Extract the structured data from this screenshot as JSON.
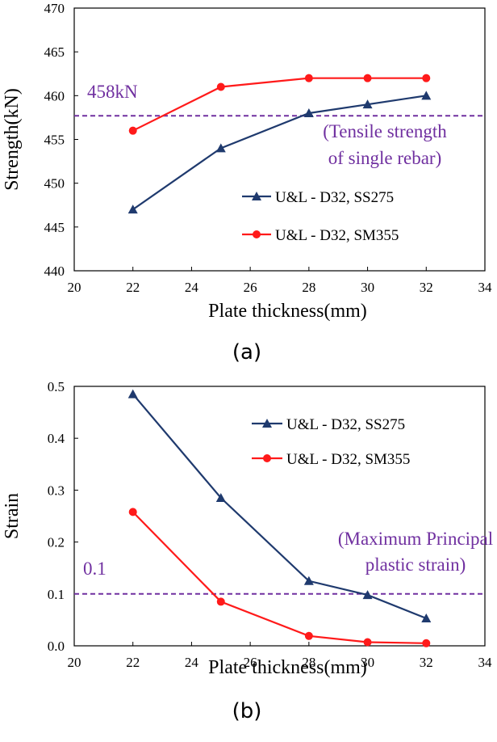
{
  "chart_data": [
    {
      "type": "line",
      "title": "",
      "caption": "(a)",
      "xlabel": "Plate thickness(mm)",
      "ylabel": "Strength(kN)",
      "xlim": [
        20,
        34
      ],
      "ylim": [
        440,
        470
      ],
      "xticks": [
        20,
        22,
        24,
        26,
        28,
        30,
        32,
        34
      ],
      "yticks": [
        440,
        445,
        450,
        455,
        460,
        465,
        470
      ],
      "grid": false,
      "legend_position": "right",
      "series": [
        {
          "name": "U&L - D32, SS275",
          "color": "#1f3a6e",
          "marker": "triangle",
          "x": [
            22,
            25,
            28,
            30,
            32
          ],
          "y": [
            447,
            454,
            458,
            459,
            460
          ]
        },
        {
          "name": "U&L - D32, SM355",
          "color": "#ff1a1a",
          "marker": "circle",
          "x": [
            22,
            25,
            28,
            30,
            32
          ],
          "y": [
            456,
            461,
            462,
            462,
            462
          ]
        }
      ],
      "reference_line": {
        "y": 457.7,
        "color": "#7030a0",
        "style": "dashed",
        "label": "458kN"
      },
      "annotation": {
        "lines": [
          "(Tensile strength",
          "of single rebar)"
        ],
        "color": "#7030a0"
      }
    },
    {
      "type": "line",
      "title": "",
      "caption": "(b)",
      "xlabel": "Plate thickness(mm)",
      "ylabel": "Strain",
      "xlim": [
        20,
        34
      ],
      "ylim": [
        0,
        0.5
      ],
      "xticks": [
        20,
        22,
        24,
        26,
        28,
        30,
        32,
        34
      ],
      "yticks": [
        0,
        0.1,
        0.2,
        0.3,
        0.4,
        0.5
      ],
      "grid": false,
      "legend_position": "top-right",
      "series": [
        {
          "name": "U&L - D32, SS275",
          "color": "#1f3a6e",
          "marker": "triangle",
          "x": [
            22,
            25,
            28,
            30,
            32
          ],
          "y": [
            0.485,
            0.285,
            0.125,
            0.098,
            0.053
          ]
        },
        {
          "name": "U&L - D32, SM355",
          "color": "#ff1a1a",
          "marker": "circle",
          "x": [
            22,
            25,
            28,
            30,
            32
          ],
          "y": [
            0.258,
            0.085,
            0.019,
            0.007,
            0.005
          ]
        }
      ],
      "reference_line": {
        "y": 0.1,
        "color": "#7030a0",
        "style": "dashed",
        "label": "0.1"
      },
      "annotation": {
        "lines": [
          "(Maximum Principal",
          "plastic strain)"
        ],
        "color": "#7030a0"
      }
    }
  ]
}
